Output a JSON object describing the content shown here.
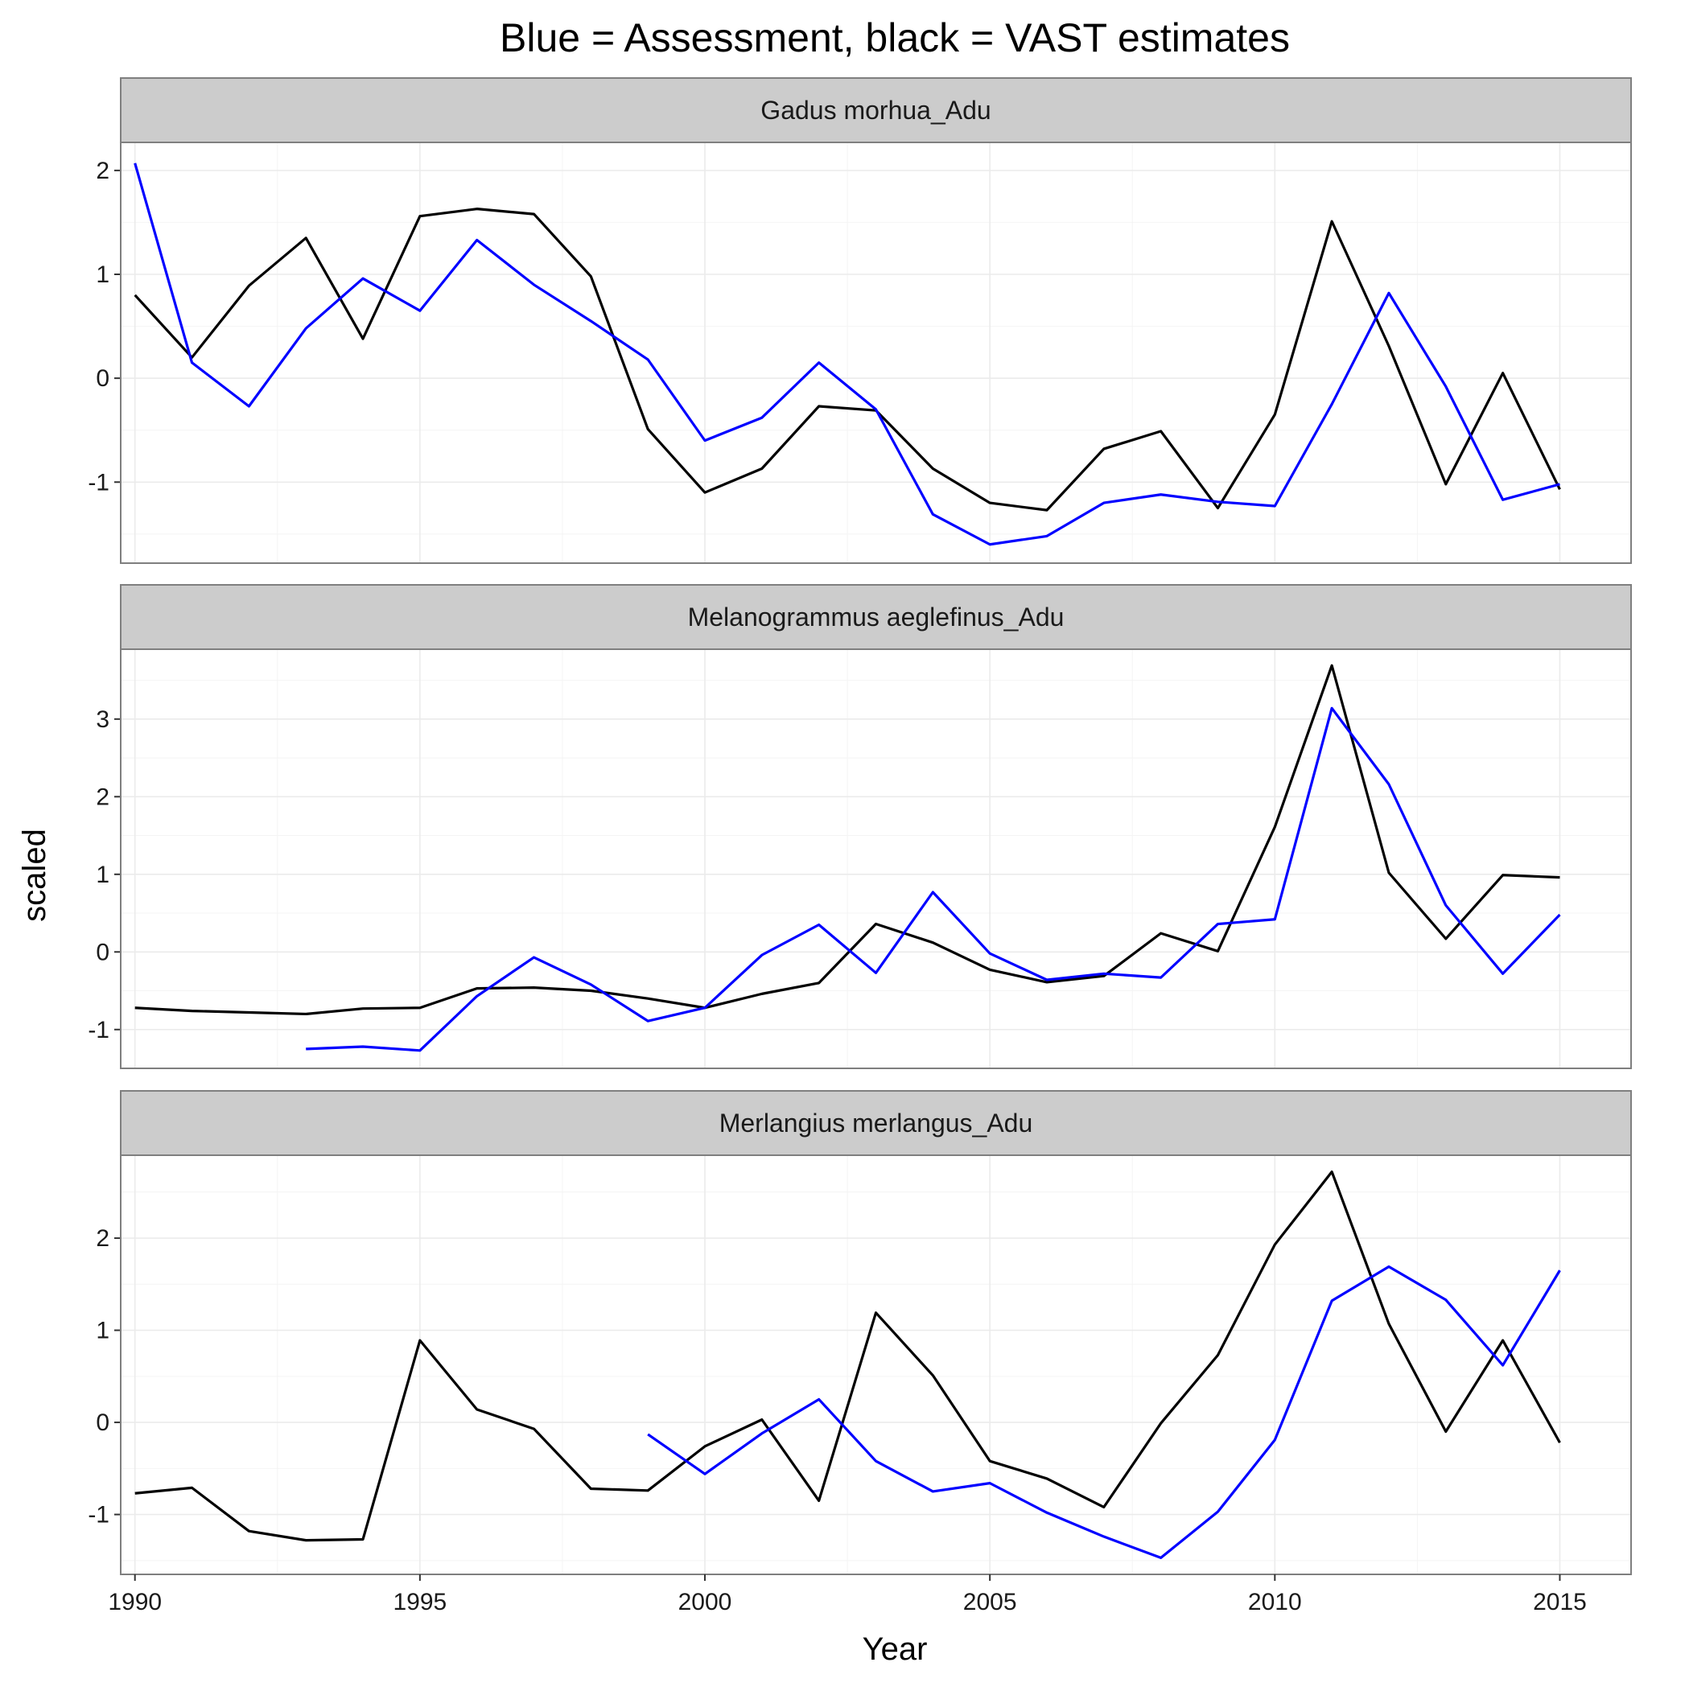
{
  "chart_data": {
    "type": "line",
    "title": "Blue = Assessment, black = VAST estimates",
    "xlabel": "Year",
    "ylabel": "scaled",
    "xlim": [
      1989.75,
      2016.25
    ],
    "x_ticks": [
      1990,
      1995,
      2000,
      2005,
      2010,
      2015
    ],
    "grid": true,
    "legend": "none",
    "series_colors": {
      "VAST": "#000000",
      "Assessment": "#0000ff"
    },
    "panels": [
      {
        "strip": "Gadus morhua_Adu",
        "ylim": [
          -1.78,
          2.27
        ],
        "y_ticks": [
          -1,
          0,
          1,
          2
        ],
        "y_tick_labels": [
          "-1",
          "0",
          "1",
          "2"
        ],
        "series": [
          {
            "color": "#000000",
            "x": [
              1990,
              1991,
              1992,
              1993,
              1994,
              1995,
              1996,
              1997,
              1998,
              1999,
              2000,
              2001,
              2002,
              2003,
              2004,
              2005,
              2006,
              2007,
              2008,
              2009,
              2010,
              2011,
              2012,
              2013,
              2014,
              2015
            ],
            "y": [
              0.8,
              0.2,
              0.89,
              1.35,
              0.38,
              1.56,
              1.63,
              1.58,
              0.98,
              -0.49,
              -1.1,
              -0.87,
              -0.27,
              -0.31,
              -0.87,
              -1.2,
              -1.27,
              -0.68,
              -0.51,
              -1.25,
              -0.35,
              1.51,
              0.31,
              -1.02,
              0.05,
              -1.07
            ]
          },
          {
            "color": "#0000ff",
            "x": [
              1990,
              1991,
              1992,
              1993,
              1994,
              1995,
              1996,
              1997,
              1998,
              1999,
              2000,
              2001,
              2002,
              2003,
              2004,
              2005,
              2006,
              2007,
              2008,
              2009,
              2010,
              2011,
              2012,
              2013,
              2014,
              2015
            ],
            "y": [
              2.07,
              0.15,
              -0.27,
              0.48,
              0.96,
              0.65,
              1.33,
              0.9,
              0.55,
              0.18,
              -0.6,
              -0.38,
              0.15,
              -0.3,
              -1.31,
              -1.6,
              -1.52,
              -1.2,
              -1.12,
              -1.19,
              -1.23,
              -0.25,
              0.82,
              -0.08,
              -1.17,
              -1.02
            ]
          }
        ]
      },
      {
        "strip": "Melanogrammus aeglefinus_Adu",
        "ylim": [
          -1.5,
          3.9
        ],
        "y_ticks": [
          -1,
          0,
          1,
          2,
          3
        ],
        "y_tick_labels": [
          "-1",
          "0",
          "1",
          "2",
          "3"
        ],
        "series": [
          {
            "color": "#000000",
            "x": [
              1990,
              1991,
              1992,
              1993,
              1994,
              1995,
              1996,
              1997,
              1998,
              1999,
              2000,
              2001,
              2002,
              2003,
              2004,
              2005,
              2006,
              2007,
              2008,
              2009,
              2010,
              2011,
              2012,
              2013,
              2014,
              2015
            ],
            "y": [
              -0.72,
              -0.76,
              -0.78,
              -0.8,
              -0.73,
              -0.72,
              -0.47,
              -0.46,
              -0.5,
              -0.6,
              -0.72,
              -0.54,
              -0.4,
              0.36,
              0.12,
              -0.23,
              -0.39,
              -0.31,
              0.24,
              0.01,
              1.61,
              3.69,
              1.02,
              0.17,
              0.99,
              0.96
            ]
          },
          {
            "color": "#0000ff",
            "x": [
              1993,
              1994,
              1995,
              1996,
              1997,
              1998,
              1999,
              2000,
              2001,
              2002,
              2003,
              2004,
              2005,
              2006,
              2007,
              2008,
              2009,
              2010,
              2011,
              2012,
              2013,
              2014,
              2015
            ],
            "y": [
              -1.25,
              -1.22,
              -1.27,
              -0.57,
              -0.07,
              -0.42,
              -0.89,
              -0.72,
              -0.04,
              0.35,
              -0.27,
              0.77,
              -0.02,
              -0.36,
              -0.28,
              -0.33,
              0.36,
              0.42,
              3.14,
              2.16,
              0.6,
              -0.28,
              0.48
            ]
          }
        ]
      },
      {
        "strip": "Merlangius merlangus_Adu",
        "ylim": [
          -1.65,
          2.9
        ],
        "y_ticks": [
          -1,
          0,
          1,
          2
        ],
        "y_tick_labels": [
          "-1",
          "0",
          "1",
          "2"
        ],
        "series": [
          {
            "color": "#000000",
            "x": [
              1990,
              1991,
              1992,
              1993,
              1994,
              1995,
              1996,
              1997,
              1998,
              1999,
              2000,
              2001,
              2002,
              2003,
              2004,
              2005,
              2006,
              2007,
              2008,
              2009,
              2010,
              2011,
              2012,
              2013,
              2014,
              2015
            ],
            "y": [
              -0.77,
              -0.71,
              -1.18,
              -1.28,
              -1.27,
              0.89,
              0.14,
              -0.07,
              -0.72,
              -0.74,
              -0.26,
              0.03,
              -0.85,
              1.19,
              0.51,
              -0.42,
              -0.61,
              -0.92,
              -0.01,
              0.73,
              1.93,
              2.72,
              1.07,
              -0.1,
              0.89,
              -0.22
            ]
          },
          {
            "color": "#0000ff",
            "x": [
              1999,
              2000,
              2001,
              2002,
              2003,
              2004,
              2005,
              2006,
              2007,
              2008,
              2009,
              2010,
              2011,
              2012,
              2013,
              2014,
              2015
            ],
            "y": [
              -0.13,
              -0.56,
              -0.12,
              0.25,
              -0.42,
              -0.75,
              -0.66,
              -0.98,
              -1.24,
              -1.47,
              -0.97,
              -0.19,
              1.32,
              1.69,
              1.33,
              0.62,
              1.65
            ]
          }
        ]
      }
    ]
  }
}
